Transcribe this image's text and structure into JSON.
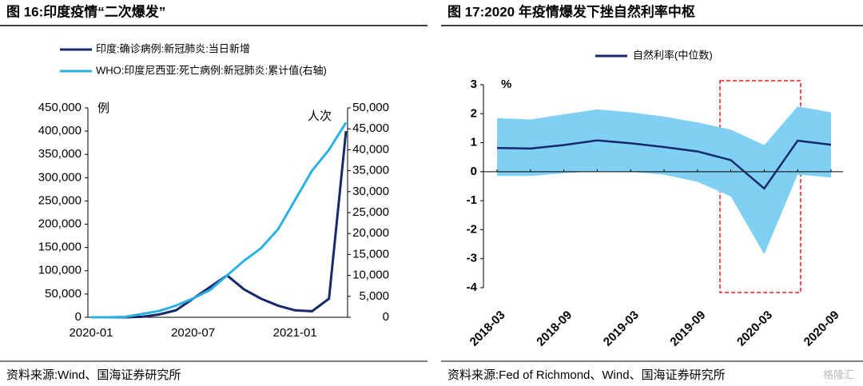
{
  "chart_data": [
    {
      "type": "line",
      "title": "图 16:印度疫情“二次爆发”",
      "source": "资料来源:Wind、国海证券研究所",
      "ylabel": "例",
      "y2label": "人次",
      "categories": [
        "2020-01",
        null,
        null,
        null,
        null,
        null,
        "2020-07",
        null,
        null,
        null,
        null,
        null,
        "2021-01",
        null,
        null,
        null
      ],
      "series": [
        {
          "name": "印度:确诊病例:新冠肺炎:当日新增",
          "color": "#162a6b",
          "values": [
            0,
            0,
            0,
            1000,
            6000,
            15000,
            40000,
            65000,
            90000,
            60000,
            40000,
            25000,
            15000,
            13000,
            40000,
            400000
          ]
        },
        {
          "name": "WHO:印度尼西亚:死亡病例:新冠肺炎:累计值(右轴)",
          "color": "#2bb0e6",
          "axis": "y2",
          "values": [
            0,
            0,
            100,
            800,
            1500,
            2800,
            4500,
            6500,
            10000,
            13500,
            16500,
            21000,
            28000,
            35000,
            40000,
            46500
          ]
        }
      ],
      "ylim": [
        0,
        450000
      ],
      "yticks": [
        0,
        {
          "value": 50000,
          "label": "50,000"
        },
        {
          "value": 100000,
          "label": "100,000"
        },
        {
          "value": 150000,
          "label": "150,000"
        },
        {
          "value": 200000,
          "label": "200,000"
        },
        {
          "value": 250000,
          "label": "250,000"
        },
        {
          "value": 300000,
          "label": "300,000"
        },
        {
          "value": 350000,
          "label": "350,000"
        },
        {
          "value": 400000,
          "label": "400,000"
        },
        {
          "value": 450000,
          "label": "450,000"
        }
      ],
      "y2lim": [
        0,
        50000
      ],
      "y2ticks": [
        0,
        {
          "value": 5000,
          "label": "5,000"
        },
        {
          "value": 10000,
          "label": "10,000"
        },
        {
          "value": 15000,
          "label": "15,000"
        },
        {
          "value": 20000,
          "label": "20,000"
        },
        {
          "value": 25000,
          "label": "25,000"
        },
        {
          "value": 30000,
          "label": "30,000"
        },
        {
          "value": 35000,
          "label": "35,000"
        },
        {
          "value": 40000,
          "label": "40,000"
        },
        {
          "value": 45000,
          "label": "45,000"
        },
        {
          "value": 50000,
          "label": "50,000"
        }
      ]
    },
    {
      "type": "band-line",
      "title": "图 17:2020 年疫情爆发下挫自然利率中枢",
      "source": "资料来源:Fed of Richmond、Wind、国海证券研究所",
      "watermark": "格隆汇",
      "ylabel": "%",
      "categories": [
        "2018-03",
        null,
        "2018-09",
        null,
        "2019-03",
        null,
        "2019-09",
        null,
        "2020-03",
        null,
        "2020-09"
      ],
      "series": [
        {
          "name": "自然利率(中位数)",
          "color": "#162a6b",
          "values": [
            0.82,
            0.8,
            0.92,
            1.08,
            0.98,
            0.85,
            0.7,
            0.4,
            -0.58,
            1.07,
            0.93
          ]
        }
      ],
      "band_color": "#7fd0f2",
      "band_upper": [
        1.85,
        1.8,
        1.98,
        2.15,
        2.05,
        1.9,
        1.7,
        1.45,
        0.92,
        2.25,
        2.05
      ],
      "band_lower": [
        -0.15,
        -0.15,
        -0.05,
        0.02,
        0.0,
        -0.1,
        -0.35,
        -0.85,
        -2.85,
        -0.1,
        -0.2
      ],
      "ylim": [
        -4,
        3
      ],
      "yticks": [
        -4,
        -3,
        -2,
        -1,
        0,
        1,
        2,
        3
      ]
    }
  ]
}
